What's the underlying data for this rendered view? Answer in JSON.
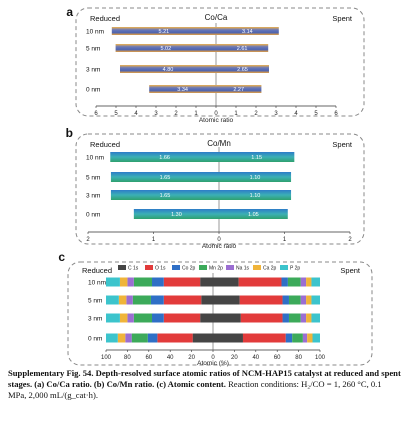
{
  "panels": [
    {
      "letter": "a",
      "title": "Co/Ca",
      "left_label": "Reduced",
      "right_label": "Spent",
      "xlabel": "Atomic ratio"
    },
    {
      "letter": "b",
      "title": "Co/Mn",
      "left_label": "Reduced",
      "right_label": "Spent",
      "xlabel": "Atomic ratio"
    },
    {
      "letter": "c",
      "title": "",
      "left_label": "Reduced",
      "right_label": "Spent",
      "xlabel": "Atomic (%)"
    }
  ],
  "chart_data": [
    {
      "type": "bar",
      "orientation": "horizontal-butterfly",
      "title": "Co/Ca",
      "xlabel": "Atomic ratio",
      "categories": [
        "10 nm",
        "5 nm",
        "3 nm",
        "0 nm"
      ],
      "xlim": [
        -6,
        6
      ],
      "ticks": [
        "6",
        "5",
        "4",
        "3",
        "2",
        "1",
        "0",
        "1",
        "2",
        "3",
        "4",
        "5",
        "6"
      ],
      "series": [
        {
          "name": "Reduced",
          "values": [
            5.21,
            5.02,
            4.8,
            3.34
          ],
          "labels": [
            "5.21",
            "5.02",
            "4.80",
            "3.34"
          ]
        },
        {
          "name": "Spent",
          "values": [
            3.14,
            2.61,
            2.65,
            2.27
          ],
          "labels": [
            "3.14",
            "2.61",
            "2.65",
            "2.27"
          ]
        }
      ],
      "colors": [
        "#5a6fb6",
        "#e8a34a"
      ]
    },
    {
      "type": "bar",
      "orientation": "horizontal-butterfly",
      "title": "Co/Mn",
      "xlabel": "Atomic ratio",
      "categories": [
        "10 nm",
        "5 nm",
        "3 nm",
        "0 nm"
      ],
      "xlim": [
        -2,
        2
      ],
      "ticks": [
        "2",
        "1",
        "0",
        "1",
        "2"
      ],
      "series": [
        {
          "name": "Reduced",
          "values": [
            1.66,
            1.65,
            1.65,
            1.3
          ],
          "labels": [
            "1.66",
            "1.65",
            "1.65",
            "1.30"
          ]
        },
        {
          "name": "Spent",
          "values": [
            1.15,
            1.1,
            1.1,
            1.05
          ],
          "labels": [
            "1.15",
            "1.10",
            "1.10",
            "1.05"
          ]
        }
      ],
      "colors": [
        "#3aa7b3",
        "#2f7fc4"
      ]
    },
    {
      "type": "bar",
      "orientation": "horizontal-stacked-butterfly",
      "xlabel": "Atomic (%)",
      "categories": [
        "10 nm",
        "5 nm",
        "3 nm",
        "0 nm"
      ],
      "xlim": [
        -100,
        100
      ],
      "ticks": [
        "100",
        "80",
        "60",
        "40",
        "20",
        "0",
        "20",
        "40",
        "60",
        "80",
        "100"
      ],
      "components": [
        "C 1s",
        "O 1s",
        "Co 2p",
        "Mn 2p",
        "Na 1s",
        "Ca 2p",
        "P 2p"
      ],
      "colors": [
        "#454545",
        "#e23b3b",
        "#2f6fc6",
        "#3caa5a",
        "#9b6ed2",
        "#f0b43a",
        "#3cc4cc"
      ],
      "reduced": [
        [
          12,
          34,
          11,
          17,
          6,
          7,
          13
        ],
        [
          11,
          35,
          12,
          17,
          6,
          7,
          12
        ],
        [
          12,
          34,
          11,
          17,
          6,
          7,
          13
        ],
        [
          19,
          33,
          9,
          15,
          6,
          7,
          11
        ]
      ],
      "spent": [
        [
          24,
          40,
          6,
          12,
          5,
          5,
          8
        ],
        [
          25,
          40,
          6,
          11,
          5,
          5,
          8
        ],
        [
          26,
          39,
          6,
          11,
          5,
          5,
          8
        ],
        [
          28,
          40,
          6,
          10,
          4,
          5,
          7
        ]
      ]
    }
  ],
  "caption": {
    "bold": "Supplementary Fig. 54. Depth-resolved surface atomic ratios of NCM-HAP15 catalyst at reduced and spent stages. (a) Co/Ca ratio. (b) Co/Mn ratio. (c) Atomic content.",
    "conditions": "Reaction conditions: H₂/CO = 1, 260 °C, 0.1 MPa, 2,000 mL/(g_cat·h)."
  }
}
